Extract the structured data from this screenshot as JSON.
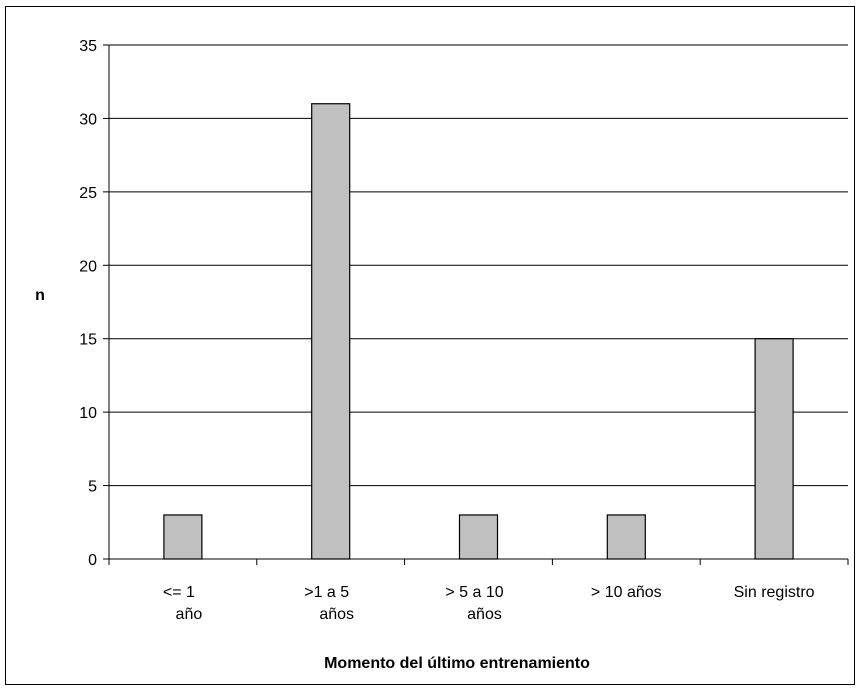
{
  "chart_data": {
    "type": "bar",
    "categories": [
      [
        "<= 1",
        "año"
      ],
      [
        ">1 a 5",
        "años"
      ],
      [
        "> 5 a 10",
        "años"
      ],
      [
        "> 10 años"
      ],
      [
        "Sin registro"
      ]
    ],
    "values": [
      3,
      31,
      3,
      3,
      15
    ],
    "xlabel": "Momento del último entrenamiento",
    "ylabel": "n",
    "ylim": [
      0,
      35
    ],
    "yticks": [
      0,
      5,
      10,
      15,
      20,
      25,
      30,
      35
    ],
    "grid": true,
    "legend": "none",
    "colors": {
      "bar_fill": "#c0c0c0",
      "bar_stroke": "#000000",
      "grid": "#000000",
      "background": "#ffffff"
    }
  }
}
